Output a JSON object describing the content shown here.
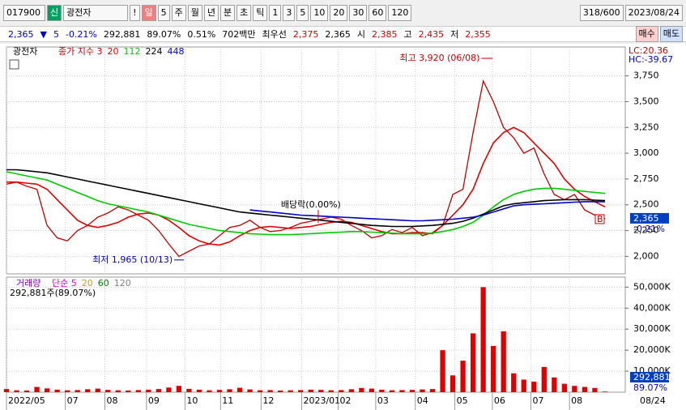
{
  "toolbar": {
    "code": "017900",
    "market": "신",
    "name": "광전자",
    "alert": "!",
    "period": "일",
    "period_n": "5",
    "units": [
      "주",
      "월",
      "년",
      "분",
      "초",
      "틱"
    ],
    "intervals": [
      "1",
      "3",
      "5",
      "10",
      "20",
      "30",
      "60",
      "120"
    ],
    "count": "318/600",
    "date": "2023/08/24"
  },
  "quote": {
    "price": "2,365",
    "arrow": "▼",
    "change": "5",
    "change_pct": "-0.21%",
    "volume": "292,881",
    "volume_ratio": "89.07%",
    "turnover": "0.51%",
    "amount": "702백만",
    "best_label": "최우선",
    "ask": "2,375",
    "bid": "2,365",
    "open_label": "시",
    "open": "2,385",
    "high_label": "고",
    "high": "2,435",
    "low_label": "저",
    "low": "2,355",
    "buy": "매수",
    "sell": "매도"
  },
  "chart_data": [
    {
      "type": "line",
      "title": "광전자",
      "x_end_label": "08/24",
      "categories": [
        null,
        null,
        null,
        null,
        null,
        null,
        null,
        null,
        null,
        null,
        null,
        null,
        null,
        null,
        null,
        null,
        null,
        null,
        null,
        null,
        null,
        null,
        null,
        null,
        null,
        null,
        null,
        null,
        null,
        null,
        null,
        null,
        null,
        null,
        null,
        null,
        null,
        null,
        null,
        null,
        null,
        null,
        null,
        null,
        null,
        null,
        null,
        null,
        null,
        null,
        null,
        null,
        null,
        null,
        null,
        null,
        null,
        null,
        null,
        null
      ],
      "xlim": [
        0,
        61
      ],
      "xticks": [
        {
          "value": 0,
          "label": "2022/05"
        },
        {
          "value": 5.8,
          "label": "07"
        },
        {
          "value": 9.7,
          "label": "08"
        },
        {
          "value": 13.8,
          "label": "09"
        },
        {
          "value": 17.6,
          "label": "10"
        },
        {
          "value": 21.1,
          "label": "11"
        },
        {
          "value": 25.1,
          "label": "12"
        },
        {
          "value": 29.1,
          "label": "2023/01"
        },
        {
          "value": 32.7,
          "label": "02"
        },
        {
          "value": 36.4,
          "label": "03"
        },
        {
          "value": 40.3,
          "label": "04"
        },
        {
          "value": 44.2,
          "label": "05"
        },
        {
          "value": 47.9,
          "label": "06"
        },
        {
          "value": 51.7,
          "label": "07"
        },
        {
          "value": 55.5,
          "label": "08"
        }
      ],
      "ylim": [
        1830,
        4030
      ],
      "yticks": [
        {
          "value": 2000,
          "label": "2,000"
        },
        {
          "value": 2250,
          "label": "2,250"
        },
        {
          "value": 2500,
          "label": "2,500"
        },
        {
          "value": 2750,
          "label": "2,750"
        },
        {
          "value": 3000,
          "label": "3,000"
        },
        {
          "value": 3250,
          "label": "3,250"
        },
        {
          "value": 3500,
          "label": "3,500"
        },
        {
          "value": 3750,
          "label": "3,750"
        }
      ],
      "grid": true,
      "series": [
        {
          "name": "종가 지수 3",
          "color": "#c00000",
          "values": [
            2700,
            2720,
            2680,
            2650,
            2300,
            2180,
            2150,
            2250,
            2300,
            2380,
            2420,
            2480,
            2450,
            2400,
            2350,
            2250,
            2120,
            2000,
            2050,
            2100,
            2120,
            2200,
            2280,
            2300,
            2350,
            2280,
            2240,
            2250,
            2280,
            2320,
            2340,
            2360,
            2380,
            2360,
            2300,
            2250,
            2180,
            2200,
            2260,
            2230,
            2280,
            2200,
            2230,
            2300,
            2600,
            2650,
            3200,
            3700,
            3500,
            3250,
            3150,
            3000,
            3050,
            2800,
            2600,
            2550,
            2600,
            2450,
            2400,
            2365
          ]
        },
        {
          "name": "20",
          "color": "#e00000",
          "values": [
            2720,
            2720,
            2710,
            2700,
            2650,
            2550,
            2450,
            2350,
            2300,
            2280,
            2300,
            2330,
            2380,
            2410,
            2420,
            2400,
            2350,
            2280,
            2200,
            2150,
            2120,
            2110,
            2140,
            2200,
            2250,
            2280,
            2290,
            2280,
            2270,
            2280,
            2290,
            2310,
            2330,
            2340,
            2330,
            2300,
            2270,
            2240,
            2220,
            2220,
            2230,
            2230,
            2220,
            2300,
            2400,
            2500,
            2650,
            2900,
            3100,
            3200,
            3250,
            3200,
            3100,
            3000,
            2900,
            2750,
            2650,
            2580,
            2530,
            2480
          ]
        },
        {
          "name": "112",
          "color": "#00c800",
          "values": [
            2820,
            2800,
            2780,
            2760,
            2740,
            2700,
            2660,
            2620,
            2580,
            2540,
            2510,
            2490,
            2470,
            2450,
            2430,
            2400,
            2370,
            2340,
            2310,
            2290,
            2270,
            2250,
            2240,
            2230,
            2220,
            2215,
            2210,
            2210,
            2210,
            2215,
            2220,
            2225,
            2230,
            2235,
            2240,
            2240,
            2235,
            2230,
            2225,
            2220,
            2220,
            2220,
            2225,
            2240,
            2260,
            2290,
            2330,
            2400,
            2480,
            2550,
            2600,
            2630,
            2650,
            2660,
            2660,
            2650,
            2640,
            2630,
            2620,
            2610
          ]
        },
        {
          "name": "224",
          "color": "#000000",
          "values": [
            2840,
            2840,
            2830,
            2820,
            2810,
            2790,
            2770,
            2750,
            2730,
            2710,
            2690,
            2670,
            2650,
            2630,
            2610,
            2590,
            2570,
            2550,
            2530,
            2510,
            2490,
            2470,
            2450,
            2430,
            2420,
            2410,
            2400,
            2390,
            2380,
            2370,
            2360,
            2350,
            2340,
            2330,
            2320,
            2310,
            2300,
            2295,
            2290,
            2290,
            2290,
            2295,
            2300,
            2310,
            2320,
            2340,
            2370,
            2410,
            2450,
            2490,
            2510,
            2520,
            2530,
            2540,
            2545,
            2550,
            2550,
            2550,
            2545,
            2540
          ]
        },
        {
          "name": "448",
          "color": "#0000c8",
          "values": [
            null,
            null,
            null,
            null,
            null,
            null,
            null,
            null,
            null,
            null,
            null,
            null,
            null,
            null,
            null,
            null,
            null,
            null,
            null,
            null,
            null,
            null,
            null,
            null,
            2450,
            2440,
            2430,
            2420,
            2410,
            2400,
            2395,
            2390,
            2385,
            2380,
            2375,
            2370,
            2365,
            2360,
            2355,
            2350,
            2345,
            2345,
            2350,
            2355,
            2360,
            2370,
            2380,
            2400,
            2430,
            2460,
            2490,
            2500,
            2505,
            2510,
            2515,
            2520,
            2525,
            2530,
            2530,
            2530
          ]
        }
      ],
      "annotations": [
        {
          "text": "최고 3,920 (06/08)",
          "x": 47.3,
          "y": 3920,
          "color": "#c00000"
        },
        {
          "text": "최저 1,965 (10/13)",
          "x": 17.5,
          "y": 1965,
          "color": "#0000c0"
        },
        {
          "text": "배당락(0.00%)",
          "x": 27.7,
          "y": 2450,
          "color": "#000000"
        }
      ],
      "corner_labels": [
        "LC:20.36",
        "HC:-39.67"
      ],
      "last_label": "2,365",
      "last_value": 2365,
      "last_change": "-0.21%",
      "marker": "B"
    },
    {
      "type": "bar",
      "title": "거래량",
      "info": "292,881주(89.07%)",
      "ma_legend": [
        {
          "name": "단순 5",
          "color": "#e000e0"
        },
        {
          "name": "20",
          "color": "#d0a000"
        },
        {
          "name": "60",
          "color": "#008000"
        },
        {
          "name": "120",
          "color": "#808080"
        }
      ],
      "ylim": [
        0,
        54000
      ],
      "yticks": [
        {
          "value": 10000,
          "label": "10,000K"
        },
        {
          "value": 20000,
          "label": "20,000K"
        },
        {
          "value": 30000,
          "label": "30,000K"
        },
        {
          "value": 40000,
          "label": "40,000K"
        },
        {
          "value": 50000,
          "label": "50,000K"
        }
      ],
      "grid": true,
      "series": [
        {
          "name": "거래량",
          "color": "#e00000",
          "values": [
            1500,
            900,
            800,
            2500,
            1800,
            1200,
            900,
            1000,
            1400,
            1700,
            1100,
            900,
            800,
            1000,
            1200,
            1500,
            2200,
            3000,
            1600,
            1200,
            900,
            1100,
            1400,
            2100,
            1300,
            900,
            1000,
            800,
            900,
            1000,
            1200,
            1100,
            900,
            1000,
            1400,
            2000,
            1700,
            1200,
            900,
            1000,
            1100,
            1300,
            1500,
            20000,
            8000,
            15000,
            28000,
            50000,
            22000,
            29000,
            9000,
            6000,
            5000,
            12000,
            7000,
            4000,
            3000,
            2500,
            2000,
            292.881
          ]
        }
      ],
      "last_label": "292,881",
      "last_ratio": "89.07%"
    }
  ]
}
